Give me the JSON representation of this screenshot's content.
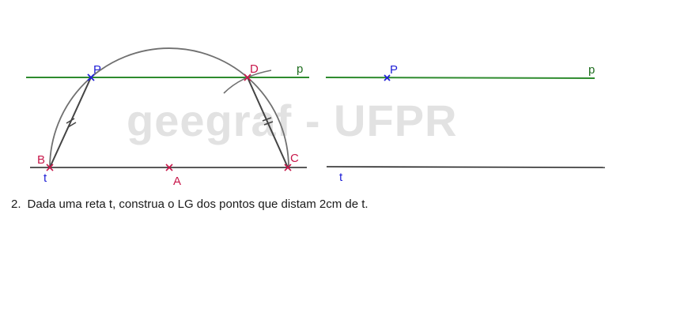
{
  "watermark": "geegraf - UFPR",
  "colors": {
    "line_p": "#2e8b2e",
    "line_t": "#222222",
    "arc": "#707070",
    "label_blue": "#1f1fd6",
    "label_red": "#c8174a",
    "label_green": "#1f6e1f",
    "segment": "#444444"
  },
  "construction": {
    "labels": {
      "P": "P",
      "D": "D",
      "p": "p",
      "B": "B",
      "t": "t",
      "A": "A",
      "C": "C"
    }
  },
  "blank_figure": {
    "labels": {
      "P": "P",
      "p": "p",
      "t": "t"
    }
  },
  "exercise": {
    "number": "2.",
    "text": "Dada uma reta t, construa o LG dos pontos que distam 2cm de t."
  }
}
